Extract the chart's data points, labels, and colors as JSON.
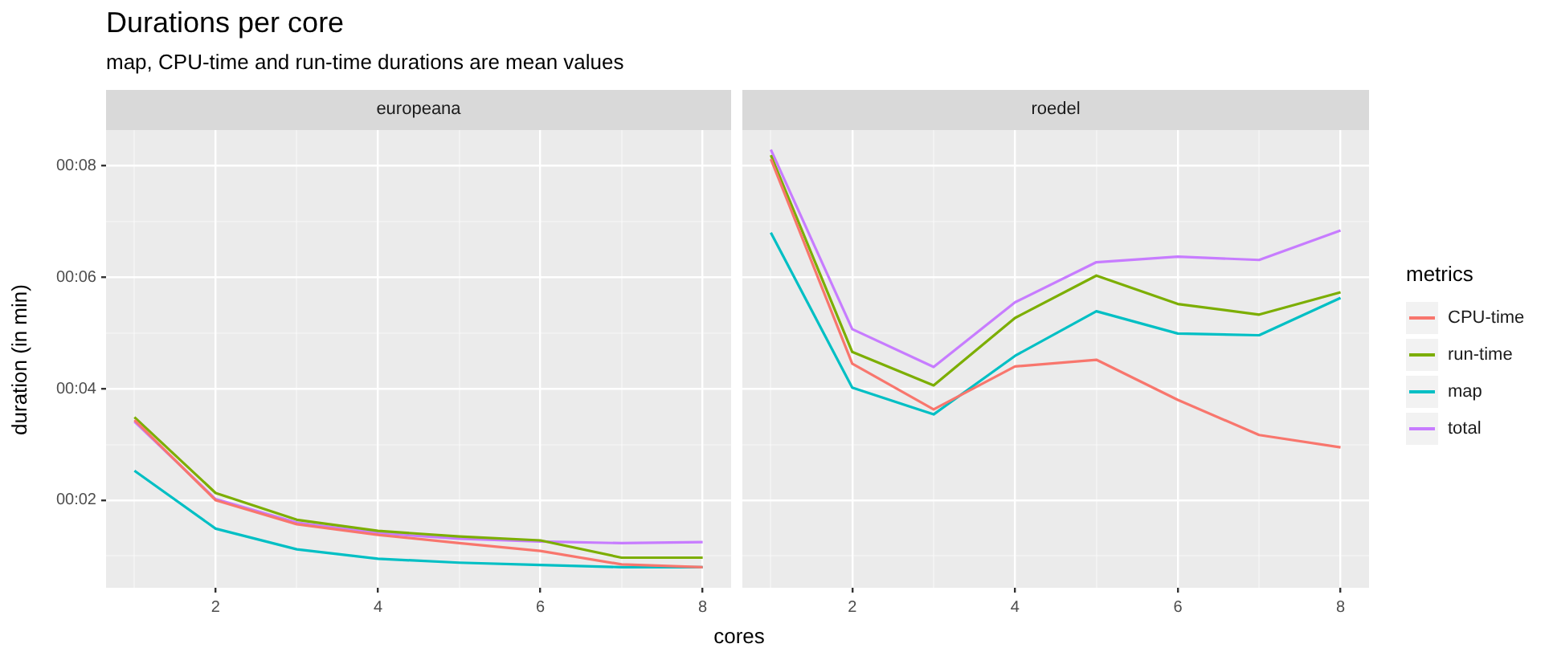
{
  "chart_data": [
    {
      "type": "line",
      "title": "Durations per core",
      "subtitle": "map, CPU-time and run-time durations are mean values",
      "xlabel": "cores",
      "ylabel": "duration (in min)",
      "annotations": [
        "europeana"
      ],
      "x": [
        1,
        2,
        3,
        4,
        5,
        6,
        7,
        8
      ],
      "xlim": [
        0.65,
        8.35
      ],
      "xticks": [
        {
          "value": 1,
          "label": null
        },
        2,
        {
          "value": 3,
          "label": null
        },
        4,
        {
          "value": 5,
          "label": null
        },
        6,
        {
          "value": 7,
          "label": null
        },
        8
      ],
      "ylim": [
        0.43,
        8.64
      ],
      "yticks": [
        {
          "value": 1,
          "label": null
        },
        {
          "value": 2,
          "label": "00:02"
        },
        {
          "value": 3,
          "label": null
        },
        {
          "value": 4,
          "label": "00:04"
        },
        {
          "value": 5,
          "label": null
        },
        {
          "value": 6,
          "label": "00:06"
        },
        {
          "value": 7,
          "label": null
        },
        {
          "value": 8,
          "label": "00:08"
        }
      ],
      "grid": true,
      "legend": false,
      "series": [
        {
          "color": "#f8766d",
          "values": [
            3.44,
            2.0,
            1.57,
            1.38,
            1.23,
            1.09,
            0.85,
            0.8
          ]
        },
        {
          "color": "#7cae00",
          "values": [
            3.49,
            2.13,
            1.65,
            1.45,
            1.35,
            1.28,
            0.97,
            0.97
          ]
        },
        {
          "color": "#00bfc4",
          "values": [
            2.53,
            1.49,
            1.12,
            0.95,
            0.88,
            0.84,
            0.8,
            0.8
          ]
        },
        {
          "color": "#c77cff",
          "values": [
            3.41,
            2.02,
            1.6,
            1.41,
            1.31,
            1.26,
            1.23,
            1.25
          ]
        }
      ]
    },
    {
      "type": "line",
      "annotations": [
        "roedel"
      ],
      "legend_title": "metrics",
      "legend": "right",
      "tick_labels": "x",
      "x": [
        1,
        2,
        3,
        4,
        5,
        6,
        7,
        8
      ],
      "xlim": [
        0.65,
        8.35
      ],
      "xticks": [
        {
          "value": 1,
          "label": null
        },
        2,
        {
          "value": 3,
          "label": null
        },
        4,
        {
          "value": 5,
          "label": null
        },
        6,
        {
          "value": 7,
          "label": null
        },
        8
      ],
      "ylim": [
        0.43,
        8.64
      ],
      "yticks": [
        {
          "value": 1,
          "label": null
        },
        2,
        {
          "value": 3,
          "label": null
        },
        4,
        {
          "value": 5,
          "label": null
        },
        6,
        {
          "value": 7,
          "label": null
        },
        8
      ],
      "grid": true,
      "series": [
        {
          "name": "CPU-time",
          "color": "#f8766d",
          "values": [
            8.12,
            4.45,
            3.63,
            4.4,
            4.52,
            3.8,
            3.17,
            2.95
          ]
        },
        {
          "name": "run-time",
          "color": "#7cae00",
          "values": [
            8.19,
            4.66,
            4.06,
            5.27,
            6.03,
            5.52,
            5.33,
            5.73
          ]
        },
        {
          "name": "map",
          "color": "#00bfc4",
          "values": [
            6.8,
            4.02,
            3.54,
            4.59,
            5.39,
            4.99,
            4.96,
            5.63
          ]
        },
        {
          "name": "total",
          "color": "#c77cff",
          "values": [
            8.29,
            5.07,
            4.39,
            5.55,
            6.27,
            6.37,
            6.31,
            6.84
          ]
        }
      ]
    }
  ]
}
